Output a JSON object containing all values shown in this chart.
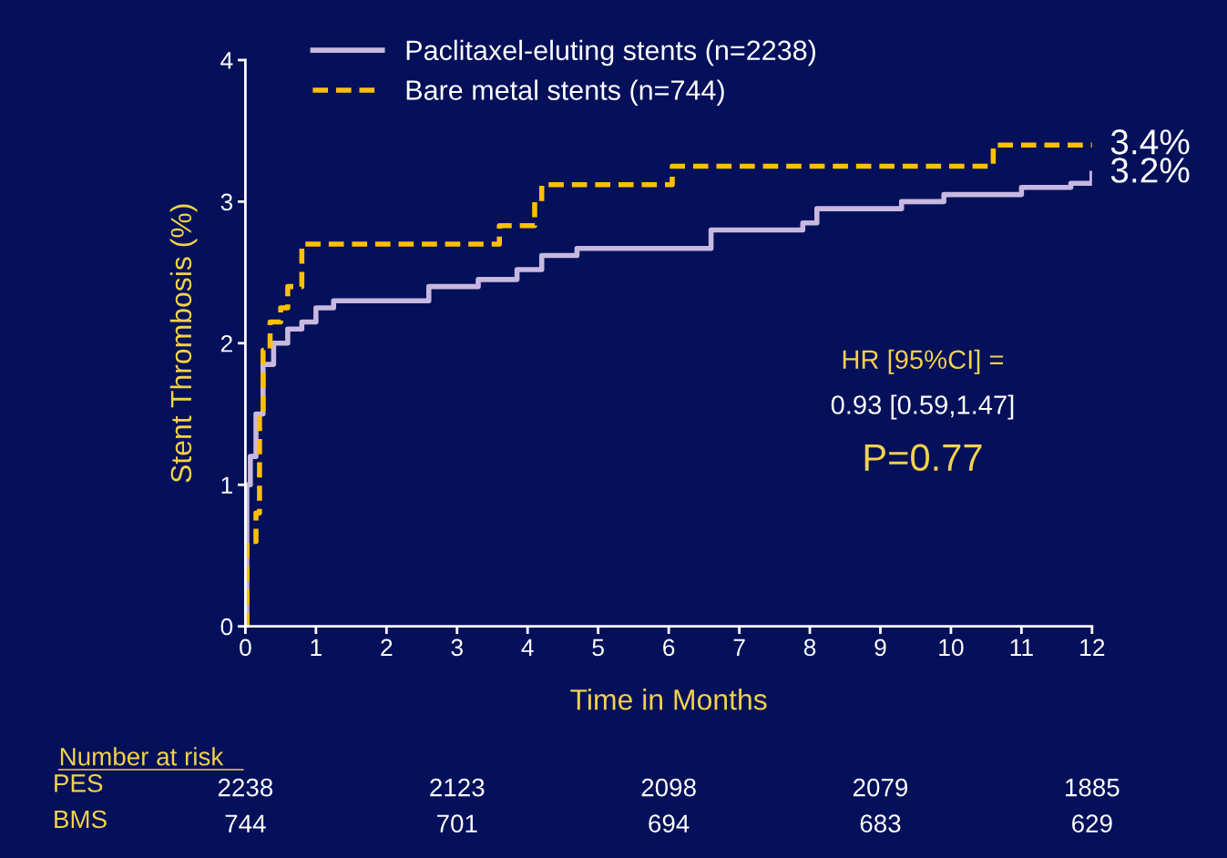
{
  "chart_data": {
    "type": "step",
    "xlabel": "Time in Months",
    "ylabel": "Stent Thrombosis (%)",
    "xlim": [
      0,
      12
    ],
    "xticks": [
      0,
      1,
      2,
      3,
      4,
      5,
      6,
      7,
      8,
      9,
      10,
      11,
      12
    ],
    "ylim": [
      0,
      4
    ],
    "yticks": [
      0,
      1,
      2,
      3,
      4
    ],
    "grid": false,
    "legend": "top left",
    "series": [
      {
        "name": "Paclitaxel-eluting stents (n=2238)",
        "color": "#c8b8e0",
        "line_style": "solid",
        "x": [
          0,
          0.02,
          0.07,
          0.15,
          0.25,
          0.4,
          0.6,
          0.8,
          1.0,
          1.25,
          2.6,
          3.3,
          3.85,
          4.2,
          4.7,
          6.6,
          7.9,
          8.1,
          9.3,
          9.9,
          11.0,
          11.7,
          12.0
        ],
        "values": [
          0,
          1.0,
          1.2,
          1.5,
          1.85,
          2.0,
          2.1,
          2.15,
          2.25,
          2.3,
          2.4,
          2.45,
          2.52,
          2.62,
          2.67,
          2.8,
          2.85,
          2.95,
          3.0,
          3.05,
          3.1,
          3.13,
          3.2
        ]
      },
      {
        "name": "Bare metal stents (n=744)",
        "color": "#ffc000",
        "line_style": "dashed",
        "x": [
          0,
          0.02,
          0.15,
          0.2,
          0.25,
          0.35,
          0.5,
          0.6,
          0.8,
          3.6,
          4.1,
          4.2,
          6.05,
          10.6,
          12.0
        ],
        "values": [
          0,
          0.6,
          0.8,
          1.5,
          1.95,
          2.15,
          2.25,
          2.4,
          2.7,
          2.83,
          3.0,
          3.12,
          3.25,
          3.4,
          3.4
        ]
      }
    ],
    "annotations": [
      {
        "text": "3.4%",
        "x": 12,
        "y": 3.4
      },
      {
        "text": "3.2%",
        "x": 12,
        "y": 3.2
      },
      "HR [95%CI] =",
      "0.93 [0.59,1.47]",
      "P=0.77",
      "Number at risk",
      "PES",
      "2238",
      "2123",
      "2098",
      "2079",
      "1885",
      "BMS",
      "744",
      "701",
      "694",
      "683",
      "629"
    ]
  }
}
